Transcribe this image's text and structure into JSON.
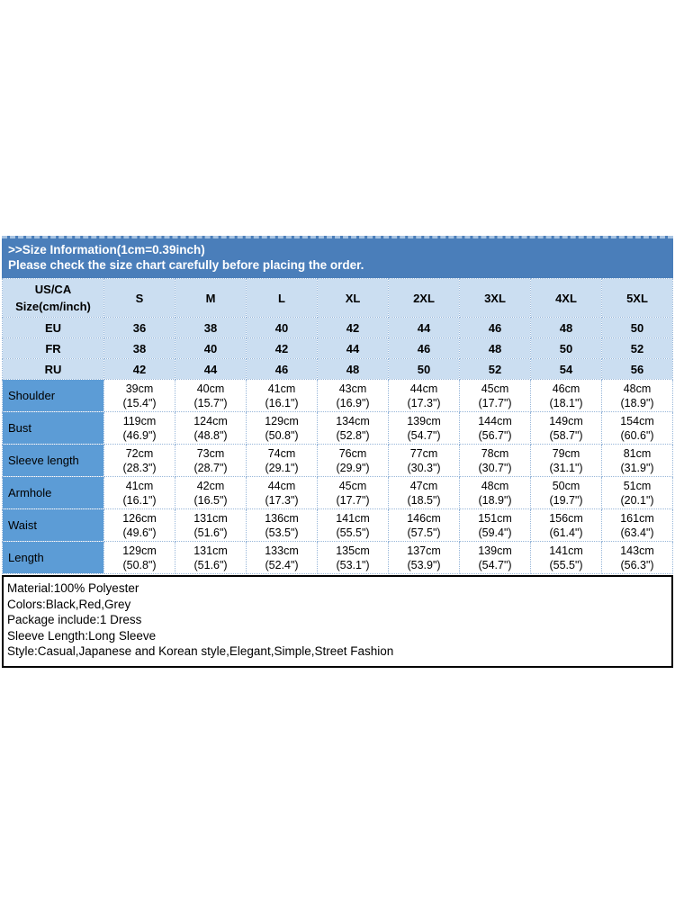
{
  "colors": {
    "banner_bg": "#4A7EBA",
    "light_row_bg": "#CBDEF1",
    "measurement_label_bg": "#5C9CD6",
    "cell_border": "#97B6D9",
    "banner_text": "#FFFFFF",
    "body_text": "#000000",
    "info_box_border": "#000000"
  },
  "banner": {
    "line1": ">>Size Information(1cm=0.39inch)",
    "line2": "Please check the size chart carefully before placing the order."
  },
  "size_table": {
    "corner": {
      "line1": "US/CA",
      "line2": "Size(cm/inch)"
    },
    "size_headers": [
      "S",
      "M",
      "L",
      "XL",
      "2XL",
      "3XL",
      "4XL",
      "5XL"
    ],
    "region_rows": [
      {
        "label": "EU",
        "values": [
          "36",
          "38",
          "40",
          "42",
          "44",
          "46",
          "48",
          "50"
        ]
      },
      {
        "label": "FR",
        "values": [
          "38",
          "40",
          "42",
          "44",
          "46",
          "48",
          "50",
          "52"
        ]
      },
      {
        "label": "RU",
        "values": [
          "42",
          "44",
          "46",
          "48",
          "50",
          "52",
          "54",
          "56"
        ]
      }
    ],
    "measurement_rows": [
      {
        "label": "Shoulder",
        "cells": [
          {
            "cm": "39cm",
            "in": "(15.4\")"
          },
          {
            "cm": "40cm",
            "in": "(15.7\")"
          },
          {
            "cm": "41cm",
            "in": "(16.1\")"
          },
          {
            "cm": "43cm",
            "in": "(16.9\")"
          },
          {
            "cm": "44cm",
            "in": "(17.3\")"
          },
          {
            "cm": "45cm",
            "in": "(17.7\")"
          },
          {
            "cm": "46cm",
            "in": "(18.1\")"
          },
          {
            "cm": "48cm",
            "in": "(18.9\")"
          }
        ]
      },
      {
        "label": "Bust",
        "cells": [
          {
            "cm": "119cm",
            "in": "(46.9\")"
          },
          {
            "cm": "124cm",
            "in": "(48.8\")"
          },
          {
            "cm": "129cm",
            "in": "(50.8\")"
          },
          {
            "cm": "134cm",
            "in": "(52.8\")"
          },
          {
            "cm": "139cm",
            "in": "(54.7\")"
          },
          {
            "cm": "144cm",
            "in": "(56.7\")"
          },
          {
            "cm": "149cm",
            "in": "(58.7\")"
          },
          {
            "cm": "154cm",
            "in": "(60.6\")"
          }
        ]
      },
      {
        "label": "Sleeve length",
        "cells": [
          {
            "cm": "72cm",
            "in": "(28.3\")"
          },
          {
            "cm": "73cm",
            "in": "(28.7\")"
          },
          {
            "cm": "74cm",
            "in": "(29.1\")"
          },
          {
            "cm": "76cm",
            "in": "(29.9\")"
          },
          {
            "cm": "77cm",
            "in": "(30.3\")"
          },
          {
            "cm": "78cm",
            "in": "(30.7\")"
          },
          {
            "cm": "79cm",
            "in": "(31.1\")"
          },
          {
            "cm": "81cm",
            "in": "(31.9\")"
          }
        ]
      },
      {
        "label": "Armhole",
        "cells": [
          {
            "cm": "41cm",
            "in": "(16.1\")"
          },
          {
            "cm": "42cm",
            "in": "(16.5\")"
          },
          {
            "cm": "44cm",
            "in": "(17.3\")"
          },
          {
            "cm": "45cm",
            "in": "(17.7\")"
          },
          {
            "cm": "47cm",
            "in": "(18.5\")"
          },
          {
            "cm": "48cm",
            "in": "(18.9\")"
          },
          {
            "cm": "50cm",
            "in": "(19.7\")"
          },
          {
            "cm": "51cm",
            "in": "(20.1\")"
          }
        ]
      },
      {
        "label": "Waist",
        "cells": [
          {
            "cm": "126cm",
            "in": "(49.6\")"
          },
          {
            "cm": "131cm",
            "in": "(51.6\")"
          },
          {
            "cm": "136cm",
            "in": "(53.5\")"
          },
          {
            "cm": "141cm",
            "in": "(55.5\")"
          },
          {
            "cm": "146cm",
            "in": "(57.5\")"
          },
          {
            "cm": "151cm",
            "in": "(59.4\")"
          },
          {
            "cm": "156cm",
            "in": "(61.4\")"
          },
          {
            "cm": "161cm",
            "in": "(63.4\")"
          }
        ]
      },
      {
        "label": "Length",
        "cells": [
          {
            "cm": "129cm",
            "in": "(50.8\")"
          },
          {
            "cm": "131cm",
            "in": "(51.6\")"
          },
          {
            "cm": "133cm",
            "in": "(52.4\")"
          },
          {
            "cm": "135cm",
            "in": "(53.1\")"
          },
          {
            "cm": "137cm",
            "in": "(53.9\")"
          },
          {
            "cm": "139cm",
            "in": "(54.7\")"
          },
          {
            "cm": "141cm",
            "in": "(55.5\")"
          },
          {
            "cm": "143cm",
            "in": "(56.3\")"
          }
        ]
      }
    ]
  },
  "product_info": {
    "lines": [
      "Material:100% Polyester",
      "Colors:Black,Red,Grey",
      "Package include:1 Dress",
      "Sleeve Length:Long Sleeve",
      "Style:Casual,Japanese and Korean style,Elegant,Simple,Street Fashion"
    ]
  }
}
